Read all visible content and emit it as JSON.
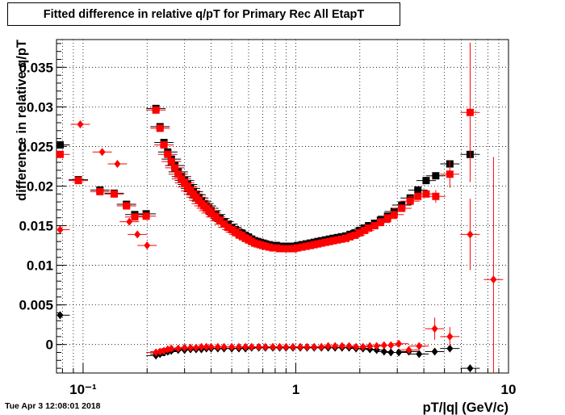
{
  "title": "Fitted difference in relative q/pT for Primary Rec All EtapT",
  "timestamp": "Tue Apr  3 12:08:01 2018",
  "chart_data": {
    "type": "scatter",
    "xlabel": "pT/|q| (GeV/c)",
    "ylabel": "difference in relative q/pT",
    "xscale": "log",
    "xlim": [
      0.075,
      10
    ],
    "ylim": [
      -0.0036,
      0.0385
    ],
    "grid": true,
    "x_tick_labels": [
      "10⁻¹",
      "1",
      "10"
    ],
    "x_tick_values": [
      0.1,
      1,
      10
    ],
    "y_tick_labels": [
      "0",
      "0.005",
      "0.01",
      "0.015",
      "0.02",
      "0.025",
      "0.03",
      "0.035"
    ],
    "y_tick_values": [
      0,
      0.005,
      0.01,
      0.015,
      0.02,
      0.025,
      0.03,
      0.035
    ],
    "series": [
      {
        "marker": "square",
        "color": "#000000",
        "x": [
          0.078,
          0.095,
          0.12,
          0.14,
          0.16,
          0.175,
          0.198,
          0.22,
          0.23,
          0.24,
          0.25,
          0.26,
          0.27,
          0.28,
          0.29,
          0.3,
          0.31,
          0.32,
          0.33,
          0.34,
          0.35,
          0.36,
          0.37,
          0.38,
          0.39,
          0.4,
          0.42,
          0.44,
          0.46,
          0.48,
          0.5,
          0.52,
          0.54,
          0.56,
          0.58,
          0.6,
          0.62,
          0.64,
          0.66,
          0.68,
          0.7,
          0.72,
          0.75,
          0.78,
          0.81,
          0.84,
          0.87,
          0.9,
          0.94,
          0.98,
          1.02,
          1.07,
          1.12,
          1.17,
          1.22,
          1.27,
          1.32,
          1.38,
          1.44,
          1.5,
          1.57,
          1.64,
          1.72,
          1.8,
          1.9,
          2.0,
          2.1,
          2.2,
          2.35,
          2.5,
          2.7,
          2.9,
          3.15,
          3.45,
          3.75,
          4.1,
          4.55,
          5.3,
          6.6
        ],
        "y": [
          0.0252,
          0.0208,
          0.0195,
          0.0191,
          0.0177,
          0.0164,
          0.0165,
          0.0298,
          0.0275,
          0.0255,
          0.0243,
          0.0234,
          0.0226,
          0.0218,
          0.0212,
          0.0207,
          0.0202,
          0.0197,
          0.0193,
          0.0189,
          0.0185,
          0.0181,
          0.0178,
          0.0175,
          0.0172,
          0.0169,
          0.0164,
          0.0159,
          0.0155,
          0.0152,
          0.0148,
          0.0145,
          0.0142,
          0.014,
          0.0137,
          0.0135,
          0.0133,
          0.0131,
          0.013,
          0.0129,
          0.0128,
          0.0127,
          0.0126,
          0.0125,
          0.0125,
          0.0124,
          0.0124,
          0.0124,
          0.0124,
          0.0124,
          0.0125,
          0.0126,
          0.0127,
          0.0128,
          0.0129,
          0.013,
          0.0131,
          0.0132,
          0.0133,
          0.0134,
          0.0135,
          0.0136,
          0.0137,
          0.0139,
          0.0141,
          0.0144,
          0.0147,
          0.015,
          0.0153,
          0.0157,
          0.0162,
          0.0168,
          0.0176,
          0.0185,
          0.0195,
          0.0207,
          0.0213,
          0.0228,
          0.024
        ]
      },
      {
        "marker": "square",
        "color": "#ff0000",
        "x": [
          0.078,
          0.095,
          0.12,
          0.14,
          0.16,
          0.175,
          0.198,
          0.22,
          0.23,
          0.24,
          0.25,
          0.26,
          0.27,
          0.28,
          0.29,
          0.3,
          0.31,
          0.32,
          0.33,
          0.34,
          0.35,
          0.36,
          0.37,
          0.38,
          0.39,
          0.4,
          0.42,
          0.44,
          0.46,
          0.48,
          0.5,
          0.52,
          0.54,
          0.56,
          0.58,
          0.6,
          0.62,
          0.64,
          0.66,
          0.68,
          0.7,
          0.72,
          0.75,
          0.78,
          0.81,
          0.84,
          0.87,
          0.9,
          0.94,
          0.98,
          1.02,
          1.07,
          1.12,
          1.17,
          1.22,
          1.27,
          1.32,
          1.38,
          1.44,
          1.5,
          1.57,
          1.64,
          1.72,
          1.8,
          1.9,
          2.0,
          2.1,
          2.2,
          2.35,
          2.5,
          2.7,
          2.9,
          3.15,
          3.45,
          3.75,
          4.1,
          4.55,
          5.3,
          6.6
        ],
        "y": [
          0.024,
          0.0207,
          0.0193,
          0.019,
          0.0175,
          0.0161,
          0.0162,
          0.0296,
          0.0273,
          0.0252,
          0.024,
          0.0231,
          0.0223,
          0.0215,
          0.0209,
          0.0204,
          0.0199,
          0.0194,
          0.019,
          0.0186,
          0.0182,
          0.0178,
          0.0175,
          0.0172,
          0.0169,
          0.0166,
          0.0161,
          0.0156,
          0.0152,
          0.0148,
          0.0145,
          0.0142,
          0.0139,
          0.0137,
          0.0134,
          0.0132,
          0.013,
          0.0128,
          0.0127,
          0.0126,
          0.0125,
          0.0124,
          0.0123,
          0.0122,
          0.0122,
          0.0121,
          0.0121,
          0.0121,
          0.0121,
          0.0121,
          0.0122,
          0.0123,
          0.0124,
          0.0125,
          0.0126,
          0.0127,
          0.0128,
          0.0129,
          0.013,
          0.0131,
          0.0132,
          0.0133,
          0.0134,
          0.0136,
          0.0138,
          0.0141,
          0.0144,
          0.0147,
          0.015,
          0.0154,
          0.0159,
          0.0164,
          0.0172,
          0.0181,
          0.0187,
          0.019,
          0.0187,
          0.0215,
          0.0293
        ],
        "y_err": [
          0,
          0,
          0,
          0,
          0,
          0,
          0,
          0,
          0,
          0,
          0,
          0,
          0,
          0,
          0,
          0,
          0,
          0,
          0,
          0,
          0,
          0,
          0,
          0,
          0,
          0,
          0,
          0,
          0,
          0,
          0,
          0,
          0,
          0,
          0,
          0,
          0,
          0,
          0,
          0,
          0,
          0,
          0,
          0,
          0,
          0,
          0,
          0,
          0,
          0,
          0,
          0,
          0,
          0,
          0,
          0,
          0,
          0,
          0,
          0,
          0,
          0,
          0,
          0,
          0,
          0,
          0,
          0,
          0,
          0,
          0,
          0,
          0,
          0,
          0,
          0,
          0.0008,
          0.0017,
          0.0088
        ]
      },
      {
        "marker": "diamond",
        "color": "#000000",
        "x": [
          0.078,
          0.22,
          0.23,
          0.24,
          0.25,
          0.26,
          0.28,
          0.3,
          0.32,
          0.34,
          0.36,
          0.38,
          0.4,
          0.43,
          0.46,
          0.5,
          0.54,
          0.58,
          0.62,
          0.67,
          0.72,
          0.78,
          0.84,
          0.9,
          0.97,
          1.05,
          1.13,
          1.22,
          1.32,
          1.42,
          1.53,
          1.65,
          1.78,
          1.92,
          2.07,
          2.23,
          2.4,
          2.6,
          2.8,
          3.05,
          3.4,
          3.8,
          4.5,
          5.3,
          6.6
        ],
        "y": [
          0.0037,
          -0.0014,
          -0.0012,
          -0.001,
          -0.0009,
          -0.0008,
          -0.0007,
          -0.0007,
          -0.0006,
          -0.0006,
          -0.0006,
          -0.0005,
          -0.0005,
          -0.0005,
          -0.0005,
          -0.0005,
          -0.0005,
          -0.0005,
          -0.0004,
          -0.0004,
          -0.0004,
          -0.0004,
          -0.0004,
          -0.0004,
          -0.0004,
          -0.0004,
          -0.0004,
          -0.0004,
          -0.0004,
          -0.0004,
          -0.0004,
          -0.0004,
          -0.0004,
          -0.0005,
          -0.0005,
          -0.0006,
          -0.0007,
          -0.0009,
          -0.001,
          -0.001,
          -0.0009,
          -0.0012,
          -0.0009,
          -0.0005,
          -0.003
        ]
      },
      {
        "marker": "diamond",
        "color": "#ff0000",
        "x": [
          0.078,
          0.097,
          0.123,
          0.145,
          0.165,
          0.18,
          0.2,
          0.22,
          0.23,
          0.24,
          0.25,
          0.26,
          0.28,
          0.3,
          0.32,
          0.34,
          0.36,
          0.38,
          0.4,
          0.43,
          0.46,
          0.5,
          0.54,
          0.58,
          0.62,
          0.67,
          0.72,
          0.78,
          0.84,
          0.9,
          0.97,
          1.05,
          1.13,
          1.22,
          1.32,
          1.42,
          1.53,
          1.65,
          1.78,
          1.92,
          2.07,
          2.23,
          2.4,
          2.6,
          2.8,
          3.05,
          3.4,
          3.8,
          4.5,
          5.3,
          6.6,
          8.5
        ],
        "y": [
          0.0145,
          0.0278,
          0.0243,
          0.0228,
          0.0155,
          0.0139,
          0.0125,
          -0.001,
          -0.0009,
          -0.0008,
          -0.0006,
          -0.0005,
          -0.0005,
          -0.0004,
          -0.0004,
          -0.0004,
          -0.0003,
          -0.0003,
          -0.0003,
          -0.0003,
          -0.0003,
          -0.0003,
          -0.0003,
          -0.0003,
          -0.0003,
          -0.0003,
          -0.0003,
          -0.0003,
          -0.0003,
          -0.0003,
          -0.0003,
          -0.0003,
          -0.0003,
          -0.0003,
          -0.0003,
          -0.0002,
          -0.0002,
          -0.0002,
          -0.0002,
          -0.0003,
          -0.0003,
          -0.0002,
          -0.0002,
          -0.0001,
          -0.0001,
          0.0001,
          -0.0007,
          -0.0002,
          0.002,
          0.001,
          0.0139,
          0.0082
        ],
        "y_err": [
          0,
          0,
          0,
          0,
          0,
          0,
          0,
          0,
          0,
          0,
          0,
          0,
          0,
          0,
          0,
          0,
          0,
          0,
          0,
          0,
          0,
          0,
          0,
          0,
          0,
          0,
          0,
          0,
          0,
          0,
          0,
          0,
          0,
          0,
          0,
          0,
          0,
          0,
          0,
          0,
          0,
          0,
          0,
          0,
          0,
          0,
          0,
          0,
          0.0014,
          0.0012,
          0.0045,
          0.0155
        ]
      }
    ]
  }
}
